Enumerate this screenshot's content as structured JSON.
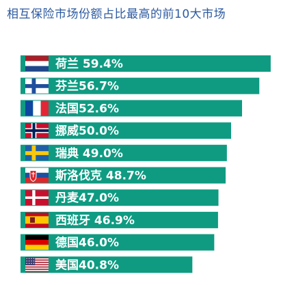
{
  "chart_data": {
    "type": "bar",
    "orientation": "horizontal",
    "title": "相互保险市场份额占比最高的前10大市场",
    "categories": [
      "荷兰",
      "芬兰",
      "法国",
      "挪威",
      "瑞典",
      "斯洛伐克",
      "丹麦",
      "西班牙",
      "德国",
      "美国"
    ],
    "values": [
      59.4,
      56.7,
      52.6,
      50.0,
      49.0,
      48.7,
      47.0,
      46.9,
      46.0,
      40.8
    ],
    "labels": [
      "荷兰 59.4%",
      "芬兰56.7%",
      "法国52.6%",
      "挪威50.0%",
      "瑞典 49.0%",
      "斯洛伐克 48.7%",
      "丹麦47.0%",
      "西班牙 46.9%",
      "德国46.0%",
      "美国40.8%"
    ],
    "flags": [
      "netherlands-flag",
      "finland-flag",
      "france-flag",
      "norway-flag",
      "sweden-flag",
      "slovakia-flag",
      "denmark-flag",
      "spain-flag",
      "germany-flag",
      "usa-flag"
    ],
    "bar_color": "#0f9b82",
    "grid": false,
    "legend": "none"
  }
}
